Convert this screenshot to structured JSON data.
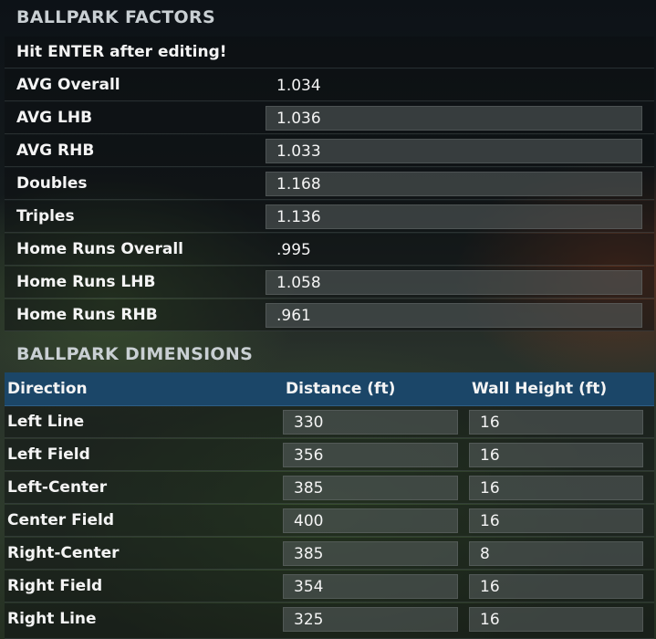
{
  "factors": {
    "title": "BALLPARK FACTORS",
    "hint": "Hit ENTER after editing!",
    "rows": [
      {
        "label": "AVG Overall",
        "value": "1.034",
        "editable": false
      },
      {
        "label": "AVG LHB",
        "value": "1.036",
        "editable": true
      },
      {
        "label": "AVG RHB",
        "value": "1.033",
        "editable": true
      },
      {
        "label": "Doubles",
        "value": "1.168",
        "editable": true
      },
      {
        "label": "Triples",
        "value": "1.136",
        "editable": true
      },
      {
        "label": "Home Runs Overall",
        "value": ".995",
        "editable": false
      },
      {
        "label": "Home Runs LHB",
        "value": "1.058",
        "editable": true
      },
      {
        "label": "Home Runs RHB",
        "value": ".961",
        "editable": true
      }
    ]
  },
  "dimensions": {
    "title": "BALLPARK DIMENSIONS",
    "columns": {
      "direction": "Direction",
      "distance": "Distance (ft)",
      "wall": "Wall Height (ft)"
    },
    "rows": [
      {
        "direction": "Left Line",
        "distance": "330",
        "wall": "16"
      },
      {
        "direction": "Left Field",
        "distance": "356",
        "wall": "16"
      },
      {
        "direction": "Left-Center",
        "distance": "385",
        "wall": "16"
      },
      {
        "direction": "Center Field",
        "distance": "400",
        "wall": "16"
      },
      {
        "direction": "Right-Center",
        "distance": "385",
        "wall": "8"
      },
      {
        "direction": "Right Field",
        "distance": "354",
        "wall": "16"
      },
      {
        "direction": "Right Line",
        "distance": "325",
        "wall": "16"
      }
    ]
  },
  "colors": {
    "header_bar": "#1b4668",
    "field_bg": "#5a6060"
  }
}
